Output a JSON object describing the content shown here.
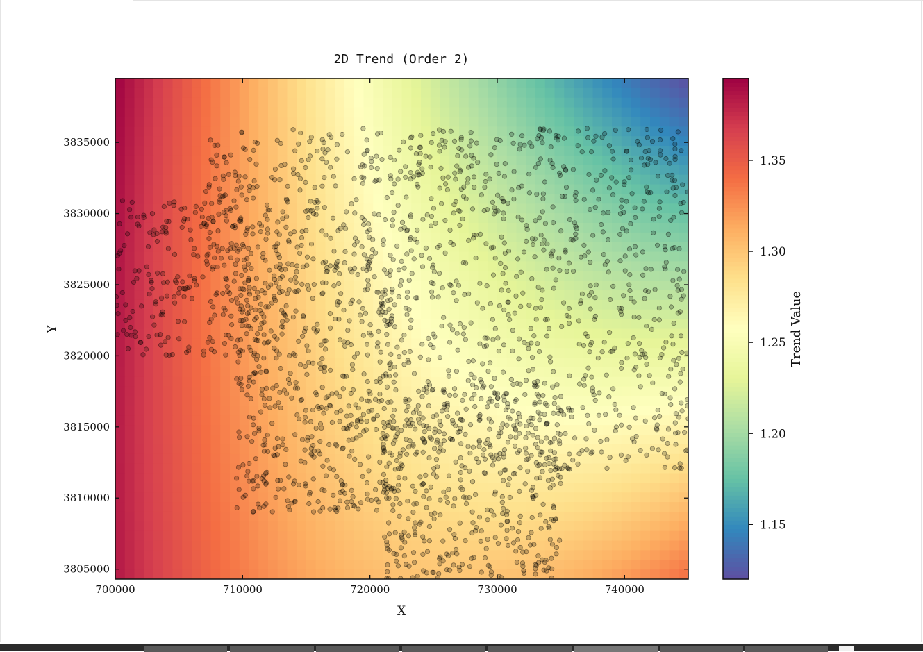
{
  "chart_data": {
    "type": "heatmap",
    "title": "2D Trend (Order 2)",
    "xlabel": "X",
    "ylabel": "Y",
    "xlim": [
      700000,
      745000
    ],
    "ylim": [
      3804300,
      3839500
    ],
    "x_ticks": [
      "700000",
      "710000",
      "720000",
      "730000",
      "740000"
    ],
    "x_tick_values": [
      700000,
      710000,
      720000,
      730000,
      740000
    ],
    "y_ticks": [
      "3805000",
      "3810000",
      "3815000",
      "3820000",
      "3825000",
      "3830000",
      "3835000"
    ],
    "y_tick_values": [
      3805000,
      3810000,
      3815000,
      3820000,
      3825000,
      3830000,
      3835000
    ],
    "colormap": "Spectral",
    "colorbar": {
      "label": "Trend Value",
      "range": [
        1.12,
        1.395
      ],
      "ticks": [
        "1.15",
        "1.20",
        "1.25",
        "1.30",
        "1.35"
      ],
      "tick_values": [
        1.15,
        1.2,
        1.25,
        1.3,
        1.35
      ]
    },
    "trend_corner_values": {
      "x700000_y3839500": 1.395,
      "x745000_y3839500": 1.12,
      "x745000_y3822000": 1.24,
      "x745000_y3804300": 1.33,
      "x700000_y3804300": 1.37,
      "x725000_y3839500": 1.28
    },
    "scatter_points": {
      "color": "#000000",
      "alpha": 0.25,
      "clusters": [
        {
          "name": "west",
          "x_range": [
            700000,
            713000
          ],
          "y_range": [
            3820000,
            3831000
          ]
        },
        {
          "name": "north-central",
          "x_range": [
            707000,
            721000
          ],
          "y_range": [
            3826000,
            3836000
          ]
        },
        {
          "name": "central",
          "x_range": [
            709500,
            722000
          ],
          "y_range": [
            3809000,
            3827000
          ]
        },
        {
          "name": "east",
          "x_range": [
            721000,
            745000
          ],
          "y_range": [
            3812000,
            3836000
          ]
        },
        {
          "name": "south",
          "x_range": [
            721000,
            735000
          ],
          "y_range": [
            3804300,
            3818000
          ]
        }
      ]
    }
  },
  "taskbar": {
    "buttons": 8
  }
}
